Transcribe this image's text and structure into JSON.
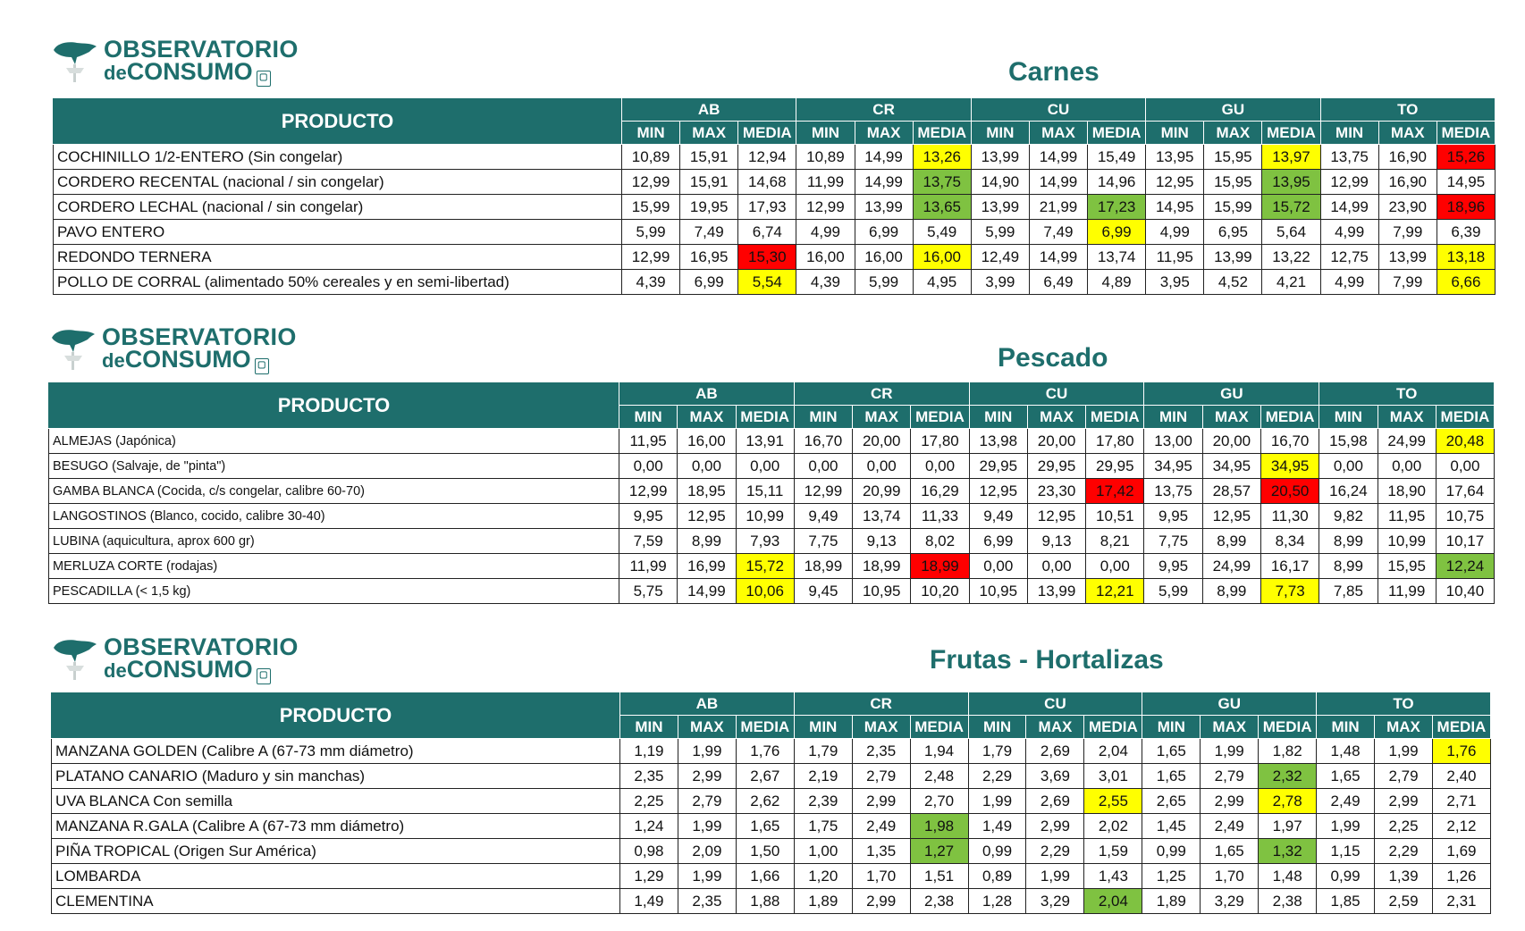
{
  "logo": {
    "line1": "OBSERVATORIO",
    "line2_prefix": "de",
    "line2_main": "CONSUMO"
  },
  "colors": {
    "header_bg": "#1e6e6c",
    "title": "#1e6e6c",
    "yellow": "#ffff00",
    "green": "#7fc241",
    "red": "#ff0000"
  },
  "header": {
    "producto": "PRODUCTO",
    "regions": [
      "AB",
      "CR",
      "CU",
      "GU",
      "TO"
    ],
    "subcols": [
      "MIN",
      "MAX",
      "MEDIA"
    ]
  },
  "sections": [
    {
      "title": "Carnes",
      "rows": [
        {
          "name": "COCHINILLO 1/2-ENTERO (Sin congelar)",
          "values": [
            "10,89",
            "15,91",
            "12,94",
            "10,89",
            "14,99",
            "13,26",
            "13,99",
            "14,99",
            "15,49",
            "13,95",
            "15,95",
            "13,97",
            "13,75",
            "16,90",
            "15,26"
          ],
          "highlights": {
            "5": "yellow",
            "11": "yellow",
            "14": "red"
          }
        },
        {
          "name": "CORDERO RECENTAL (nacional / sin congelar)",
          "values": [
            "12,99",
            "15,91",
            "14,68",
            "11,99",
            "14,99",
            "13,75",
            "14,90",
            "14,99",
            "14,96",
            "12,95",
            "15,95",
            "13,95",
            "12,99",
            "16,90",
            "14,95"
          ],
          "highlights": {
            "5": "green",
            "11": "green"
          }
        },
        {
          "name": "CORDERO LECHAL (nacional / sin congelar)",
          "values": [
            "15,99",
            "19,95",
            "17,93",
            "12,99",
            "13,99",
            "13,65",
            "13,99",
            "21,99",
            "17,23",
            "14,95",
            "15,99",
            "15,72",
            "14,99",
            "23,90",
            "18,96"
          ],
          "highlights": {
            "5": "green",
            "8": "green",
            "11": "green",
            "14": "red"
          }
        },
        {
          "name": "PAVO ENTERO",
          "values": [
            "5,99",
            "7,49",
            "6,74",
            "4,99",
            "6,99",
            "5,49",
            "5,99",
            "7,49",
            "6,99",
            "4,99",
            "6,95",
            "5,64",
            "4,99",
            "7,99",
            "6,39"
          ],
          "highlights": {
            "8": "yellow"
          }
        },
        {
          "name": "REDONDO TERNERA",
          "values": [
            "12,99",
            "16,95",
            "15,30",
            "16,00",
            "16,00",
            "16,00",
            "12,49",
            "14,99",
            "13,74",
            "11,95",
            "13,99",
            "13,22",
            "12,75",
            "13,99",
            "13,18"
          ],
          "highlights": {
            "2": "red",
            "5": "yellow",
            "14": "yellow"
          }
        },
        {
          "name": "POLLO DE CORRAL (alimentado 50% cereales y en semi-libertad)",
          "values": [
            "4,39",
            "6,99",
            "5,54",
            "4,39",
            "5,99",
            "4,95",
            "3,99",
            "6,49",
            "4,89",
            "3,95",
            "4,52",
            "4,21",
            "4,99",
            "7,99",
            "6,66"
          ],
          "highlights": {
            "2": "yellow",
            "14": "yellow"
          }
        }
      ]
    },
    {
      "title": "Pescado",
      "rows": [
        {
          "name": "ALMEJAS (Japónica)",
          "values": [
            "11,95",
            "16,00",
            "13,91",
            "16,70",
            "20,00",
            "17,80",
            "13,98",
            "20,00",
            "17,80",
            "13,00",
            "20,00",
            "16,70",
            "15,98",
            "24,99",
            "20,48"
          ],
          "highlights": {
            "14": "yellow"
          }
        },
        {
          "name": "BESUGO (Salvaje, de \"pinta\")",
          "values": [
            "0,00",
            "0,00",
            "0,00",
            "0,00",
            "0,00",
            "0,00",
            "29,95",
            "29,95",
            "29,95",
            "34,95",
            "34,95",
            "34,95",
            "0,00",
            "0,00",
            "0,00"
          ],
          "highlights": {
            "11": "yellow"
          }
        },
        {
          "name": "GAMBA BLANCA (Cocida, c/s congelar, calibre 60-70)",
          "values": [
            "12,99",
            "18,95",
            "15,11",
            "12,99",
            "20,99",
            "16,29",
            "12,95",
            "23,30",
            "17,42",
            "13,75",
            "28,57",
            "20,50",
            "16,24",
            "18,90",
            "17,64"
          ],
          "highlights": {
            "8": "red",
            "11": "red"
          }
        },
        {
          "name": "LANGOSTINOS (Blanco, cocido, calibre 30-40)",
          "values": [
            "9,95",
            "12,95",
            "10,99",
            "9,49",
            "13,74",
            "11,33",
            "9,49",
            "12,95",
            "10,51",
            "9,95",
            "12,95",
            "11,30",
            "9,82",
            "11,95",
            "10,75"
          ],
          "highlights": {}
        },
        {
          "name": "LUBINA (aquicultura, aprox 600 gr)",
          "values": [
            "7,59",
            "8,99",
            "7,93",
            "7,75",
            "9,13",
            "8,02",
            "6,99",
            "9,13",
            "8,21",
            "7,75",
            "8,99",
            "8,34",
            "8,99",
            "10,99",
            "10,17"
          ],
          "highlights": {}
        },
        {
          "name": "MERLUZA CORTE (rodajas)",
          "values": [
            "11,99",
            "16,99",
            "15,72",
            "18,99",
            "18,99",
            "18,99",
            "0,00",
            "0,00",
            "0,00",
            "9,95",
            "24,99",
            "16,17",
            "8,99",
            "15,95",
            "12,24"
          ],
          "highlights": {
            "2": "yellow",
            "5": "red",
            "14": "green"
          }
        },
        {
          "name": "PESCADILLA (< 1,5 kg)",
          "values": [
            "5,75",
            "14,99",
            "10,06",
            "9,45",
            "10,95",
            "10,20",
            "10,95",
            "13,99",
            "12,21",
            "5,99",
            "8,99",
            "7,73",
            "7,85",
            "11,99",
            "10,40"
          ],
          "highlights": {
            "2": "yellow",
            "8": "yellow",
            "11": "yellow"
          }
        }
      ]
    },
    {
      "title": "Frutas - Hortalizas",
      "rows": [
        {
          "name": "MANZANA GOLDEN (Calibre A (67-73 mm diámetro)",
          "values": [
            "1,19",
            "1,99",
            "1,76",
            "1,79",
            "2,35",
            "1,94",
            "1,79",
            "2,69",
            "2,04",
            "1,65",
            "1,99",
            "1,82",
            "1,48",
            "1,99",
            "1,76"
          ],
          "highlights": {
            "14": "yellow"
          }
        },
        {
          "name": "PLATANO CANARIO (Maduro y sin manchas)",
          "values": [
            "2,35",
            "2,99",
            "2,67",
            "2,19",
            "2,79",
            "2,48",
            "2,29",
            "3,69",
            "3,01",
            "1,65",
            "2,79",
            "2,32",
            "1,65",
            "2,79",
            "2,40"
          ],
          "highlights": {
            "11": "green"
          }
        },
        {
          "name": "UVA BLANCA Con semilla",
          "values": [
            "2,25",
            "2,79",
            "2,62",
            "2,39",
            "2,99",
            "2,70",
            "1,99",
            "2,69",
            "2,55",
            "2,65",
            "2,99",
            "2,78",
            "2,49",
            "2,99",
            "2,71"
          ],
          "highlights": {
            "8": "yellow",
            "11": "yellow"
          }
        },
        {
          "name": "MANZANA R.GALA (Calibre A (67-73 mm diámetro)",
          "values": [
            "1,24",
            "1,99",
            "1,65",
            "1,75",
            "2,49",
            "1,98",
            "1,49",
            "2,99",
            "2,02",
            "1,45",
            "2,49",
            "1,97",
            "1,99",
            "2,25",
            "2,12"
          ],
          "highlights": {
            "5": "green"
          }
        },
        {
          "name": "PIÑA TROPICAL (Origen Sur América)",
          "values": [
            "0,98",
            "2,09",
            "1,50",
            "1,00",
            "1,35",
            "1,27",
            "0,99",
            "2,29",
            "1,59",
            "0,99",
            "1,65",
            "1,32",
            "1,15",
            "2,29",
            "1,69"
          ],
          "highlights": {
            "5": "green",
            "11": "green"
          }
        },
        {
          "name": "LOMBARDA",
          "values": [
            "1,29",
            "1,99",
            "1,66",
            "1,20",
            "1,70",
            "1,51",
            "0,89",
            "1,99",
            "1,43",
            "1,25",
            "1,70",
            "1,48",
            "0,99",
            "1,39",
            "1,26"
          ],
          "highlights": {}
        },
        {
          "name": "CLEMENTINA",
          "values": [
            "1,49",
            "2,35",
            "1,88",
            "1,89",
            "2,99",
            "2,38",
            "1,28",
            "3,29",
            "2,04",
            "1,89",
            "3,29",
            "2,38",
            "1,85",
            "2,59",
            "2,31"
          ],
          "highlights": {
            "8": "green"
          }
        }
      ]
    }
  ]
}
